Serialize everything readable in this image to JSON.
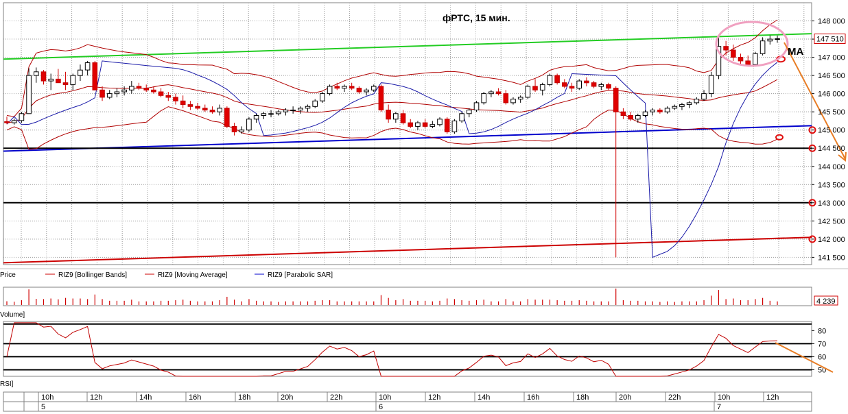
{
  "chart_data": {
    "type": "candlestick",
    "title": "фРТС,  15 мин.",
    "annotation": "MA",
    "price_axis": {
      "ticks": [
        148000,
        147500,
        147000,
        146500,
        146000,
        145500,
        145000,
        144500,
        144000,
        143500,
        143000,
        142500,
        142000,
        141500
      ],
      "tick_labels": [
        "148 000",
        "147 500",
        "147 000",
        "146 500",
        "146 000",
        "145 500",
        "145 000",
        "144 500",
        "144 000",
        "143 500",
        "143 000",
        "142 500",
        "142 000",
        "141 500"
      ],
      "ylim": [
        141300,
        148500
      ],
      "last_price": 147510,
      "last_price_label": "147 510"
    },
    "horizontal_levels": [
      144500,
      143000
    ],
    "trend_lines": [
      {
        "color": "#22cc22",
        "from": [
          0,
          146950
        ],
        "to": [
          1,
          147650
        ]
      },
      {
        "color": "#0000cc",
        "from": [
          0,
          144420
        ],
        "to": [
          1,
          145120
        ]
      },
      {
        "color": "#cc0000",
        "from": [
          0,
          141350
        ],
        "to": [
          1,
          142050
        ]
      }
    ],
    "circled_levels": [
      145000,
      144500,
      143000,
      142000
    ],
    "volume_axis": {
      "last_volume": 4239,
      "last_volume_label": "4 239"
    },
    "rsi_axis": {
      "ticks": [
        80,
        70,
        60,
        50
      ],
      "tick_labels": [
        "80",
        "70",
        "60",
        "50"
      ],
      "levels": [
        85,
        70,
        60,
        50
      ],
      "ylim": [
        45,
        87
      ]
    },
    "legend": [
      {
        "label": "Price",
        "color": "#000000"
      },
      {
        "label": "RIZ9 [Bollinger Bands]",
        "color": "#cc0000"
      },
      {
        "label": "RIZ9 [Moving Average]",
        "color": "#cc0000"
      },
      {
        "label": "RIZ9 [Parabolic SAR]",
        "color": "#0000cc"
      }
    ],
    "volume_label": "Volume]",
    "rsi_label": "RSI]",
    "time_axis": {
      "hour_labels": [
        "10h",
        "12h",
        "14h",
        "16h",
        "18h",
        "20h",
        "22h",
        "10h",
        "12h",
        "14h",
        "16h",
        "18h",
        "20h",
        "22h",
        "10h",
        "12h"
      ],
      "day_labels": [
        "5",
        "6",
        "7"
      ]
    },
    "candles": [
      [
        145230,
        145370,
        145160,
        145200
      ],
      [
        145200,
        145320,
        145150,
        145260
      ],
      [
        145260,
        145500,
        145200,
        145450
      ],
      [
        145450,
        146700,
        145450,
        146500
      ],
      [
        146500,
        146720,
        146300,
        146600
      ],
      [
        146600,
        146650,
        146250,
        146350
      ],
      [
        146350,
        146550,
        146100,
        146400
      ],
      [
        146400,
        146680,
        146300,
        146300
      ],
      [
        146300,
        146600,
        146100,
        146250
      ],
      [
        146250,
        146550,
        146100,
        146500
      ],
      [
        146500,
        146800,
        146350,
        146650
      ],
      [
        146650,
        146900,
        146500,
        146850
      ],
      [
        146850,
        146900,
        146100,
        146100
      ],
      [
        146100,
        146200,
        145800,
        145900
      ],
      [
        145900,
        146100,
        145850,
        146000
      ],
      [
        146000,
        146150,
        145900,
        146050
      ],
      [
        146050,
        146200,
        145950,
        146100
      ],
      [
        146100,
        146350,
        146000,
        146200
      ],
      [
        146200,
        146300,
        146100,
        146150
      ],
      [
        146150,
        146250,
        146050,
        146100
      ],
      [
        146100,
        146200,
        146000,
        146050
      ],
      [
        146050,
        146150,
        145900,
        145950
      ],
      [
        145950,
        146050,
        145800,
        145900
      ],
      [
        145900,
        146000,
        145700,
        145800
      ],
      [
        145800,
        145950,
        145600,
        145700
      ],
      [
        145700,
        145800,
        145550,
        145650
      ],
      [
        145650,
        145750,
        145550,
        145600
      ],
      [
        145600,
        145700,
        145500,
        145550
      ],
      [
        145550,
        145650,
        145450,
        145500
      ],
      [
        145500,
        145700,
        145400,
        145600
      ],
      [
        145600,
        145650,
        145050,
        145100
      ],
      [
        145100,
        145200,
        144850,
        144950
      ],
      [
        144950,
        145100,
        144900,
        145000
      ],
      [
        145000,
        145350,
        144950,
        145300
      ],
      [
        145300,
        145450,
        145200,
        145400
      ],
      [
        145400,
        145500,
        145300,
        145450
      ],
      [
        145450,
        145550,
        145350,
        145450
      ],
      [
        145450,
        145550,
        145400,
        145500
      ],
      [
        145500,
        145600,
        145400,
        145550
      ],
      [
        145550,
        145650,
        145450,
        145550
      ],
      [
        145550,
        145650,
        145450,
        145600
      ],
      [
        145600,
        145700,
        145500,
        145650
      ],
      [
        145650,
        145850,
        145600,
        145800
      ],
      [
        145800,
        146050,
        145750,
        146000
      ],
      [
        146000,
        146250,
        145950,
        146200
      ],
      [
        146200,
        146300,
        146100,
        146150
      ],
      [
        146150,
        146250,
        146050,
        146200
      ],
      [
        146200,
        146300,
        146100,
        146150
      ],
      [
        146150,
        146200,
        146000,
        146050
      ],
      [
        146050,
        146150,
        145950,
        146100
      ],
      [
        146100,
        146250,
        146050,
        146200
      ],
      [
        146200,
        146250,
        145500,
        145550
      ],
      [
        145550,
        145700,
        145200,
        145300
      ],
      [
        145300,
        145500,
        145200,
        145450
      ],
      [
        145450,
        145550,
        145150,
        145200
      ],
      [
        145200,
        145300,
        145050,
        145100
      ],
      [
        145100,
        145250,
        145000,
        145200
      ],
      [
        145200,
        145300,
        145050,
        145100
      ],
      [
        145100,
        145250,
        145050,
        145150
      ],
      [
        145150,
        145350,
        145100,
        145300
      ],
      [
        145300,
        145350,
        144900,
        144950
      ],
      [
        144950,
        145300,
        144900,
        145250
      ],
      [
        145250,
        145500,
        145200,
        145450
      ],
      [
        145450,
        145600,
        145350,
        145550
      ],
      [
        145550,
        145800,
        145500,
        145750
      ],
      [
        145750,
        146050,
        145700,
        146000
      ],
      [
        146000,
        146100,
        145900,
        146050
      ],
      [
        146050,
        146150,
        145950,
        146000
      ],
      [
        146000,
        146100,
        145700,
        145750
      ],
      [
        145750,
        145900,
        145700,
        145850
      ],
      [
        145850,
        145950,
        145750,
        145900
      ],
      [
        145900,
        146250,
        145850,
        146200
      ],
      [
        146200,
        146400,
        146050,
        146100
      ],
      [
        146100,
        146300,
        145950,
        146250
      ],
      [
        146250,
        146550,
        146200,
        146500
      ],
      [
        146500,
        146550,
        146250,
        146300
      ],
      [
        146300,
        146400,
        146150,
        146200
      ],
      [
        146200,
        146300,
        146050,
        146150
      ],
      [
        146150,
        146400,
        146100,
        146350
      ],
      [
        146350,
        146450,
        146200,
        146300
      ],
      [
        146300,
        146350,
        146150,
        146200
      ],
      [
        146200,
        146300,
        146100,
        146250
      ],
      [
        146250,
        146300,
        146100,
        146150
      ],
      [
        146150,
        146200,
        141500,
        145500
      ],
      [
        145500,
        145600,
        145300,
        145400
      ],
      [
        145400,
        145500,
        145250,
        145300
      ],
      [
        145300,
        145450,
        145200,
        145400
      ],
      [
        145400,
        145550,
        145350,
        145500
      ],
      [
        145500,
        145600,
        145400,
        145550
      ],
      [
        145550,
        145600,
        145450,
        145500
      ],
      [
        145500,
        145650,
        145450,
        145600
      ],
      [
        145600,
        145700,
        145550,
        145650
      ],
      [
        145650,
        145750,
        145550,
        145700
      ],
      [
        145700,
        145800,
        145600,
        145750
      ],
      [
        145750,
        145900,
        145700,
        145850
      ],
      [
        145850,
        146100,
        145800,
        146000
      ],
      [
        146000,
        146600,
        145900,
        146500
      ],
      [
        146500,
        147600,
        146400,
        147300
      ],
      [
        147300,
        147450,
        147050,
        147200
      ],
      [
        147200,
        147350,
        146900,
        147000
      ],
      [
        147000,
        147100,
        146800,
        146900
      ],
      [
        146900,
        147050,
        146750,
        146800
      ],
      [
        146800,
        147150,
        146750,
        147100
      ],
      [
        147100,
        147550,
        147050,
        147450
      ],
      [
        147450,
        147600,
        147350,
        147500
      ],
      [
        147500,
        147600,
        147400,
        147510
      ]
    ]
  }
}
